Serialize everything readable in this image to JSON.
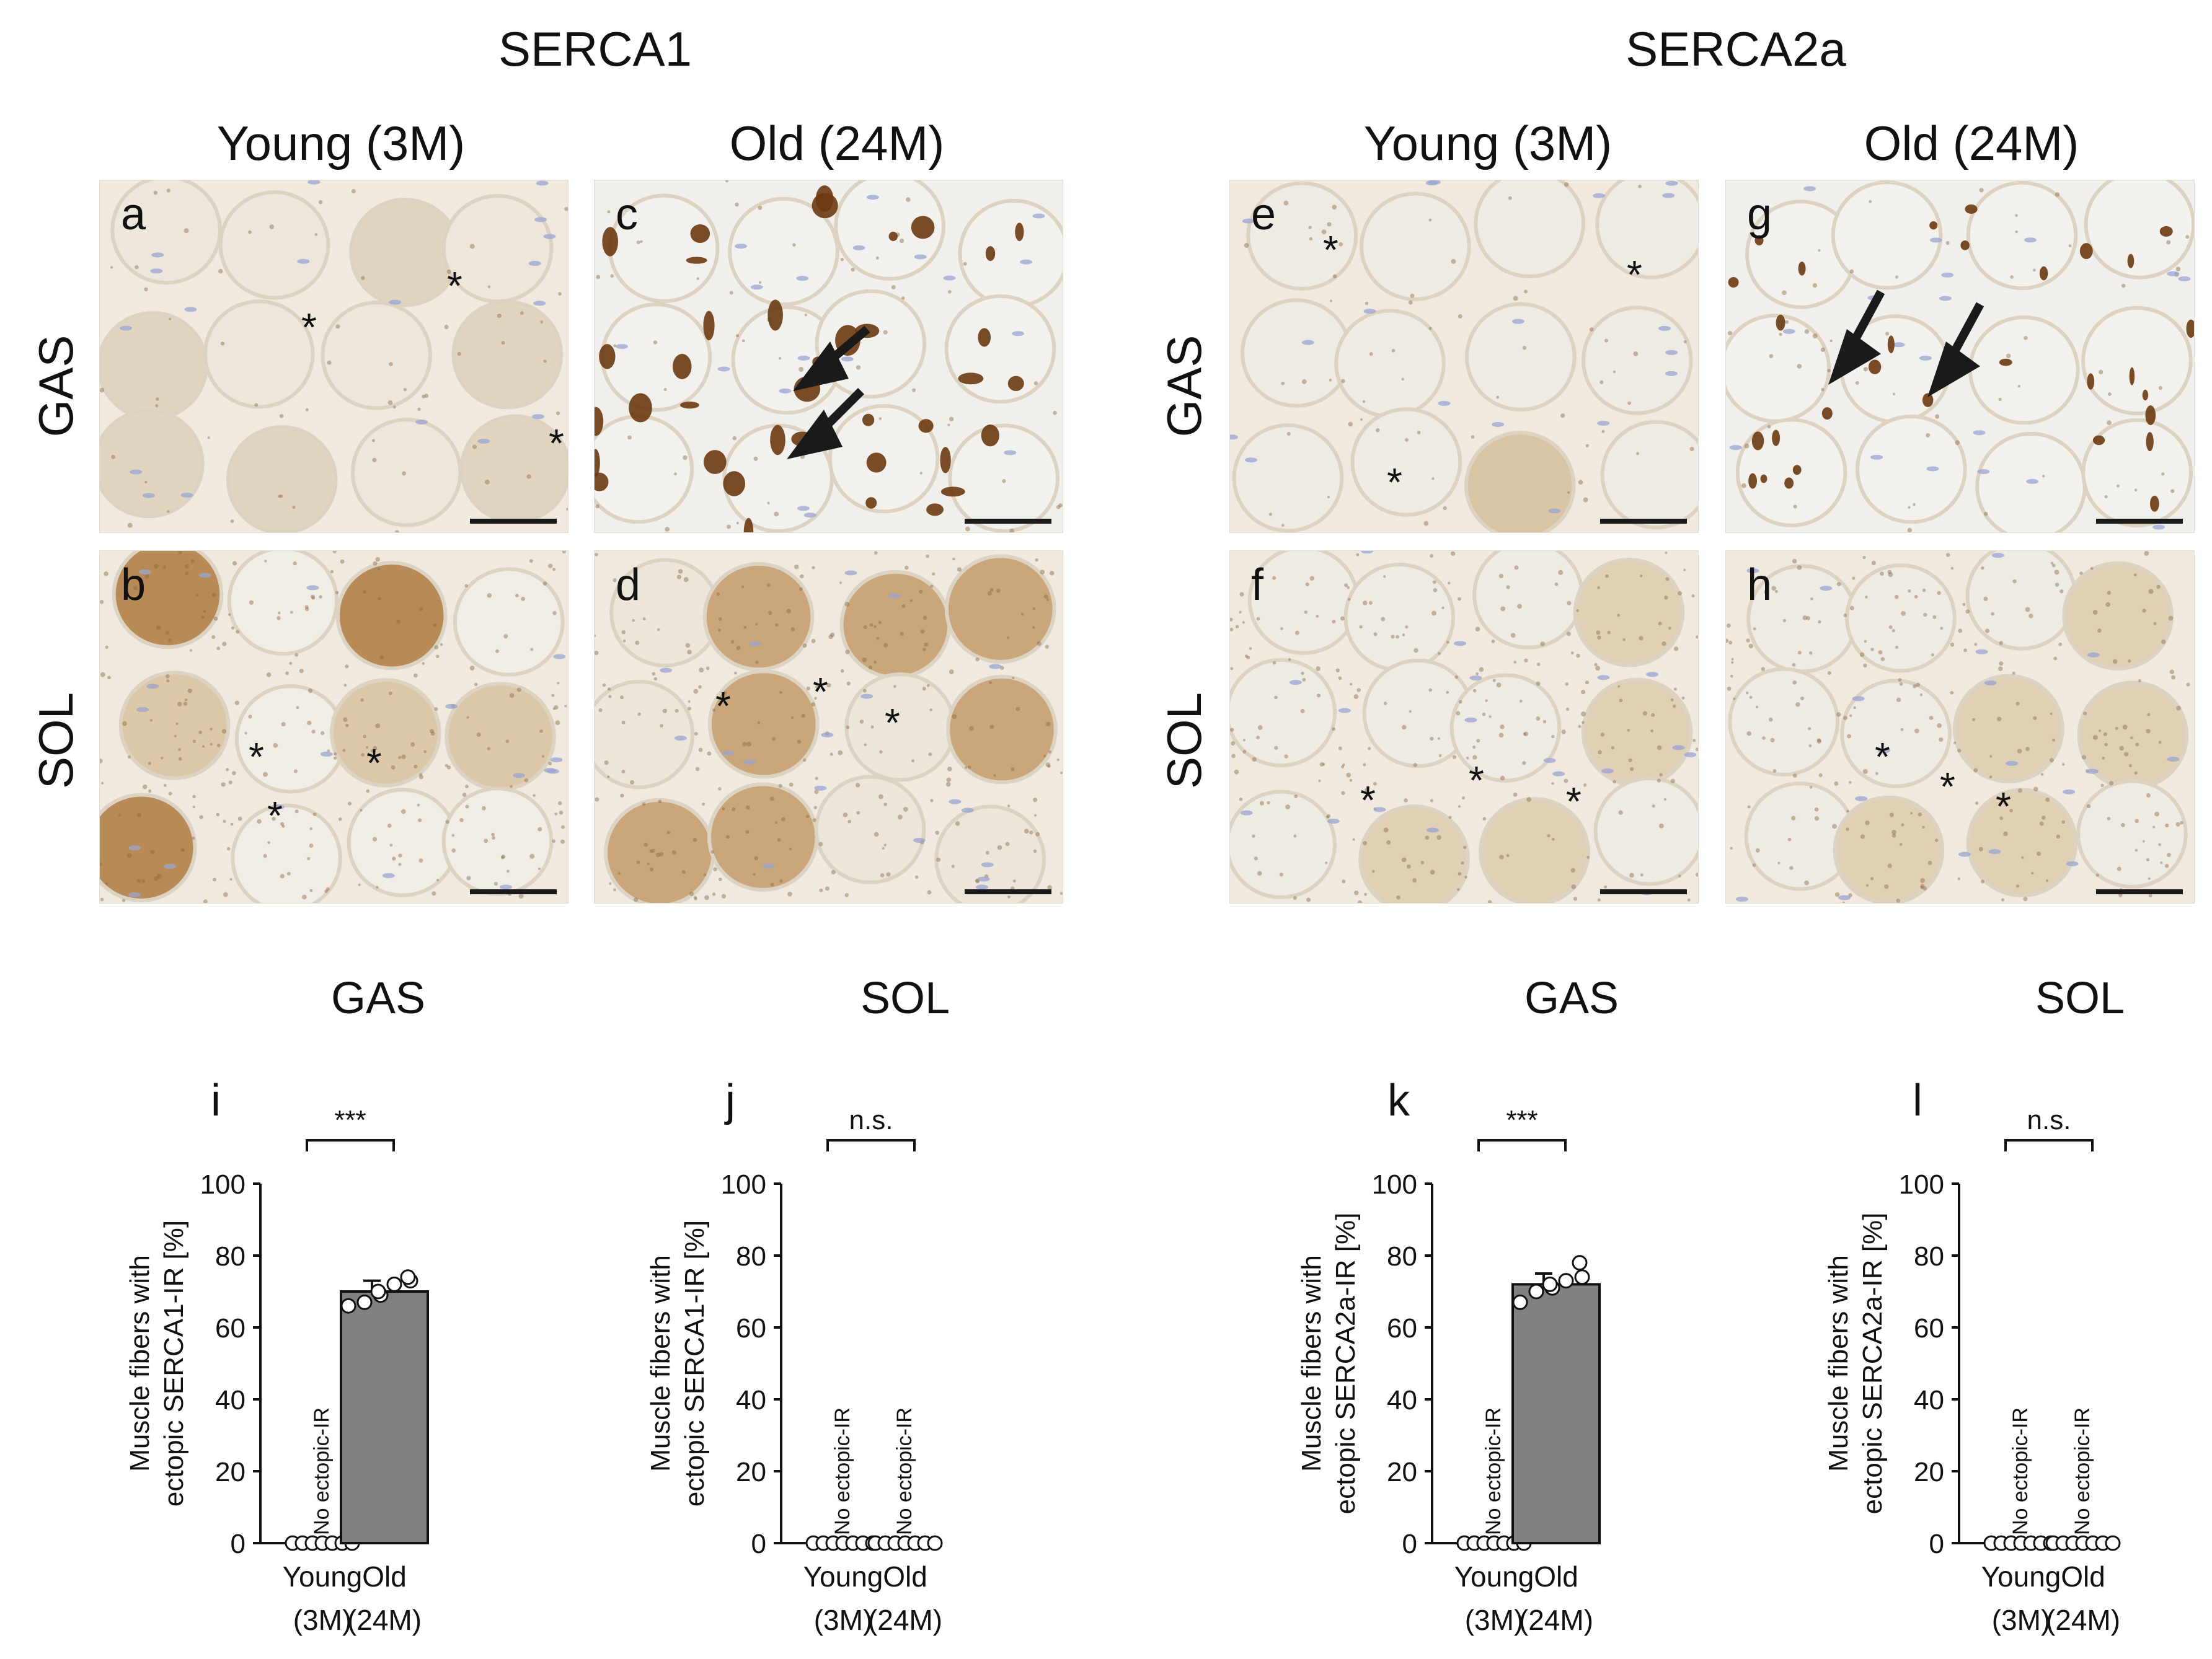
{
  "header": {
    "serca1": "SERCA1",
    "serca2a": "SERCA2a",
    "young": "Young (3M)",
    "old": "Old (24M)",
    "gas": "GAS",
    "sol": "SOL"
  },
  "panels": [
    {
      "letter": "a",
      "group": "SERCA1",
      "age": "Young (3M)",
      "tissue": "GAS",
      "markers": [
        "*",
        "*",
        "*"
      ]
    },
    {
      "letter": "b",
      "group": "SERCA1",
      "age": "Young (3M)",
      "tissue": "SOL",
      "markers": [
        "*",
        "*",
        "*"
      ]
    },
    {
      "letter": "c",
      "group": "SERCA1",
      "age": "Old (24M)",
      "tissue": "GAS",
      "markers": []
    },
    {
      "letter": "d",
      "group": "SERCA1",
      "age": "Old (24M)",
      "tissue": "SOL",
      "markers": [
        "*",
        "*",
        "*"
      ]
    },
    {
      "letter": "e",
      "group": "SERCA2a",
      "age": "Young (3M)",
      "tissue": "GAS",
      "markers": [
        "*",
        "*",
        "*"
      ]
    },
    {
      "letter": "f",
      "group": "SERCA2a",
      "age": "Young (3M)",
      "tissue": "SOL",
      "markers": [
        "*",
        "*",
        "*"
      ]
    },
    {
      "letter": "g",
      "group": "SERCA2a",
      "age": "Old (24M)",
      "tissue": "GAS",
      "markers": []
    },
    {
      "letter": "h",
      "group": "SERCA2a",
      "age": "Old (24M)",
      "tissue": "SOL",
      "markers": [
        "*",
        "*",
        "*"
      ]
    }
  ],
  "colors": {
    "bar": "#808080",
    "stain_brown": "#6b3a12",
    "tissue_bg": "#ece5d8",
    "nuclei": "#9aa4d0"
  },
  "chart_data": [
    {
      "letter": "i",
      "title": "GAS",
      "type": "bar",
      "categories": [
        "Young\n(3M)",
        "Old\n(24M)"
      ],
      "category_lines": [
        [
          "Young",
          "(3M)"
        ],
        [
          "Old",
          "(24M)"
        ]
      ],
      "values": [
        0,
        70
      ],
      "error": [
        0,
        3
      ],
      "points": [
        [
          0,
          0,
          0,
          0,
          0,
          0,
          0
        ],
        [
          66,
          67,
          69,
          70,
          72,
          73,
          74
        ]
      ],
      "bar_shown": [
        false,
        true
      ],
      "no_ir_labels": [
        "No ectopic-IR",
        null
      ],
      "significance": "***",
      "ylabel_lines": [
        "Muscle fibers with",
        "ectopic SERCA1-IR [%]"
      ],
      "ylim": [
        0,
        100
      ],
      "yticks": [
        "0",
        "20",
        "40",
        "60",
        "80",
        "100"
      ]
    },
    {
      "letter": "j",
      "title": "SOL",
      "type": "bar",
      "categories": [
        "Young\n(3M)",
        "Old\n(24M)"
      ],
      "category_lines": [
        [
          "Young",
          "(3M)"
        ],
        [
          "Old",
          "(24M)"
        ]
      ],
      "values": [
        0,
        0
      ],
      "error": [
        0,
        0
      ],
      "points": [
        [
          0,
          0,
          0,
          0,
          0,
          0,
          0
        ],
        [
          0,
          0,
          0,
          0,
          0,
          0,
          0
        ]
      ],
      "bar_shown": [
        false,
        false
      ],
      "no_ir_labels": [
        "No ectopic-IR",
        "No ectopic-IR"
      ],
      "significance": "n.s.",
      "ylabel_lines": [
        "Muscle fibers with",
        "ectopic SERCA1-IR [%]"
      ],
      "ylim": [
        0,
        100
      ],
      "yticks": [
        "0",
        "20",
        "40",
        "60",
        "80",
        "100"
      ]
    },
    {
      "letter": "k",
      "title": "GAS",
      "type": "bar",
      "categories": [
        "Young\n(3M)",
        "Old\n(24M)"
      ],
      "category_lines": [
        [
          "Young",
          "(3M)"
        ],
        [
          "Old",
          "(24M)"
        ]
      ],
      "values": [
        0,
        72
      ],
      "error": [
        0,
        3
      ],
      "points": [
        [
          0,
          0,
          0,
          0,
          0,
          0,
          0
        ],
        [
          67,
          70,
          71,
          72,
          73,
          74,
          78
        ]
      ],
      "bar_shown": [
        false,
        true
      ],
      "no_ir_labels": [
        "No ectopic-IR",
        null
      ],
      "significance": "***",
      "ylabel_lines": [
        "Muscle fibers with",
        "ectopic SERCA2a-IR [%]"
      ],
      "ylim": [
        0,
        100
      ],
      "yticks": [
        "0",
        "20",
        "40",
        "60",
        "80",
        "100"
      ]
    },
    {
      "letter": "l",
      "title": "SOL",
      "type": "bar",
      "categories": [
        "Young\n(3M)",
        "Old\n(24M)"
      ],
      "category_lines": [
        [
          "Young",
          "(3M)"
        ],
        [
          "Old",
          "(24M)"
        ]
      ],
      "values": [
        0,
        0
      ],
      "error": [
        0,
        0
      ],
      "points": [
        [
          0,
          0,
          0,
          0,
          0,
          0,
          0
        ],
        [
          0,
          0,
          0,
          0,
          0,
          0,
          0
        ]
      ],
      "bar_shown": [
        false,
        false
      ],
      "no_ir_labels": [
        "No ectopic-IR",
        "No ectopic-IR"
      ],
      "significance": "n.s.",
      "ylabel_lines": [
        "Muscle fibers with",
        "ectopic SERCA2a-IR [%]"
      ],
      "ylim": [
        0,
        100
      ],
      "yticks": [
        "0",
        "20",
        "40",
        "60",
        "80",
        "100"
      ]
    }
  ]
}
